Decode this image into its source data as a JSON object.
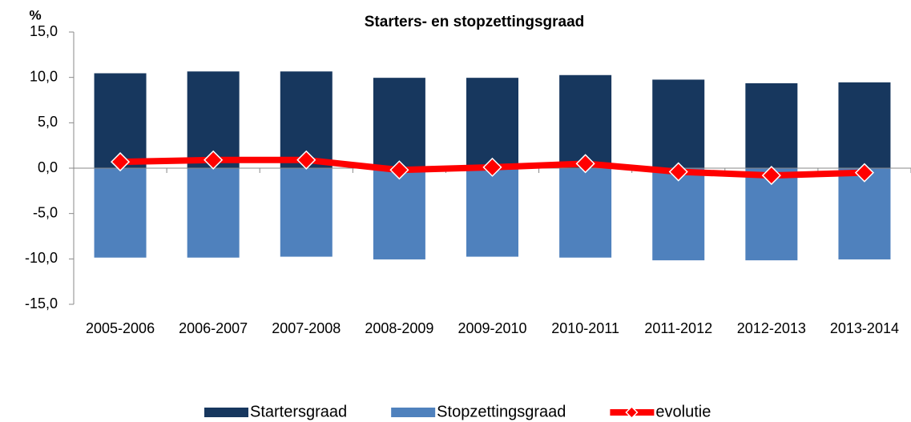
{
  "chart_data": {
    "type": "bar",
    "title": "Starters- en stopzettingsgraad",
    "y_label": "%",
    "categories": [
      "2005-2006",
      "2006-2007",
      "2007-2008",
      "2008-2009",
      "2009-2010",
      "2010-2011",
      "2011-2012",
      "2012-2013",
      "2013-2014"
    ],
    "series": [
      {
        "name": "Startersgraad",
        "color": "#17375e",
        "values": [
          10.5,
          10.7,
          10.7,
          10.0,
          10.0,
          10.3,
          9.8,
          9.4,
          9.5
        ]
      },
      {
        "name": "Stopzettingsgraad",
        "color": "#4f81bd",
        "values": [
          -9.9,
          -9.9,
          -9.8,
          -10.1,
          -9.8,
          -9.9,
          -10.2,
          -10.2,
          -10.1
        ]
      },
      {
        "name": "evolutie",
        "type": "line",
        "color": "#ff0000",
        "values": [
          0.7,
          0.9,
          0.9,
          -0.2,
          0.1,
          0.5,
          -0.4,
          -0.8,
          -0.5
        ]
      }
    ],
    "ylim": [
      -15,
      15
    ],
    "yticks": [
      {
        "value": -15,
        "label": "-15,0"
      },
      {
        "value": -10,
        "label": "-10,0"
      },
      {
        "value": -5,
        "label": "-5,0"
      },
      {
        "value": 0,
        "label": "0,0"
      },
      {
        "value": 5,
        "label": "5,0"
      },
      {
        "value": 10,
        "label": "10,0"
      },
      {
        "value": 15,
        "label": "15,0"
      }
    ],
    "legend": "bottom"
  }
}
